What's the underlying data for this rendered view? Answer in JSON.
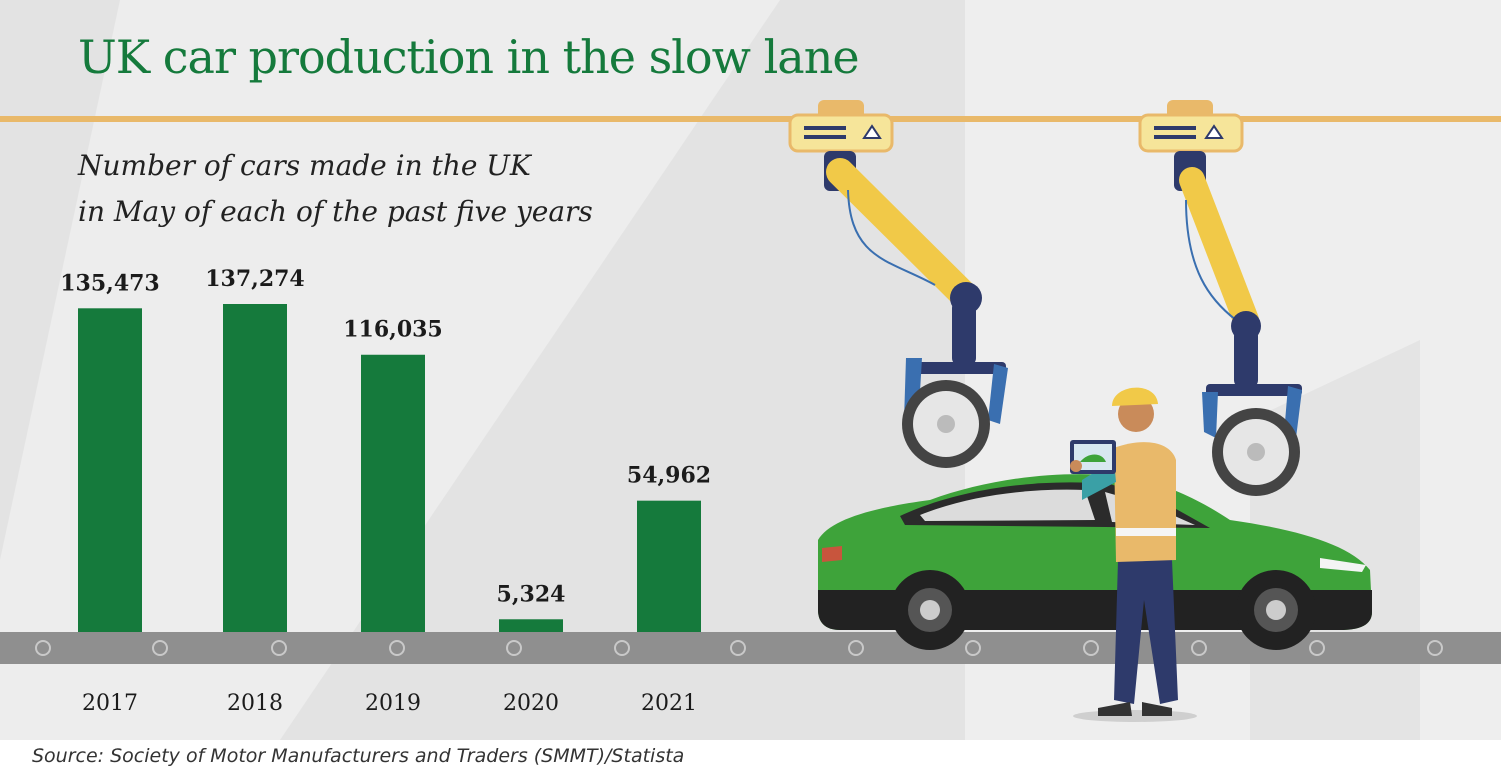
{
  "title": "UK car production in the slow lane",
  "subtitle_lines": [
    "Number of cars made in the UK",
    "in May of  each of the past five years"
  ],
  "source": "Source: Society of Motor Manufacturers and Traders (SMMT)/Statista",
  "colors": {
    "bar": "#157a3c",
    "title": "#157a3c",
    "rule": "#e9b96a",
    "belt": "#8f8f8f",
    "car": "#3ea33a"
  },
  "chart_data": {
    "type": "bar",
    "categories": [
      "2017",
      "2018",
      "2019",
      "2020",
      "2021"
    ],
    "values": [
      135473,
      137274,
      116035,
      5324,
      54962
    ],
    "value_labels": [
      "135,473",
      "137,274",
      "116,035",
      "5,324",
      "54,962"
    ],
    "title": "UK car production in the slow lane",
    "xlabel": "",
    "ylabel": "",
    "ylim": [
      0,
      137274
    ],
    "grid": false,
    "legend": "none"
  }
}
